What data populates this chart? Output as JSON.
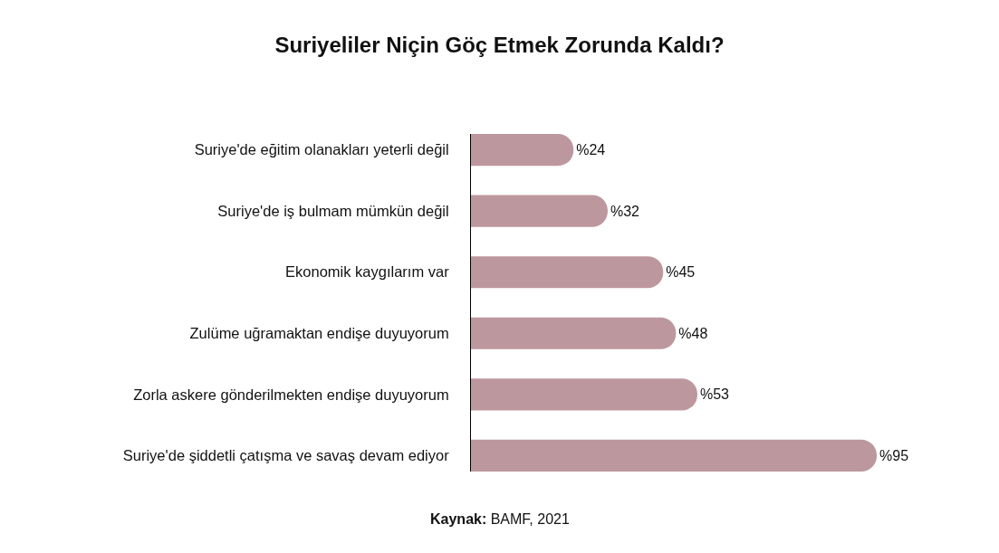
{
  "chart_data": {
    "type": "bar",
    "orientation": "horizontal",
    "title": "Suriyeliler Niçin Göç Etmek Zorunda Kaldı?",
    "categories": [
      "Suriye'de eğitim olanakları yeterli değil",
      "Suriye'de iş bulmam mümkün değil",
      "Ekonomik kaygılarım var",
      "Zulüme uğramaktan endişe duyuyorum",
      "Zorla askere gönderilmekten endişe duyuyorum",
      "Suriye'de şiddetli çatışma ve savaş devam ediyor"
    ],
    "values": [
      24,
      32,
      45,
      48,
      53,
      95
    ],
    "value_labels": [
      "%24",
      "%32",
      "%45",
      "%48",
      "%53",
      "%95"
    ],
    "color": "#bd979e",
    "tick_labels": "y",
    "annotations": [
      "Kaynak: BAMF, 2021"
    ]
  }
}
